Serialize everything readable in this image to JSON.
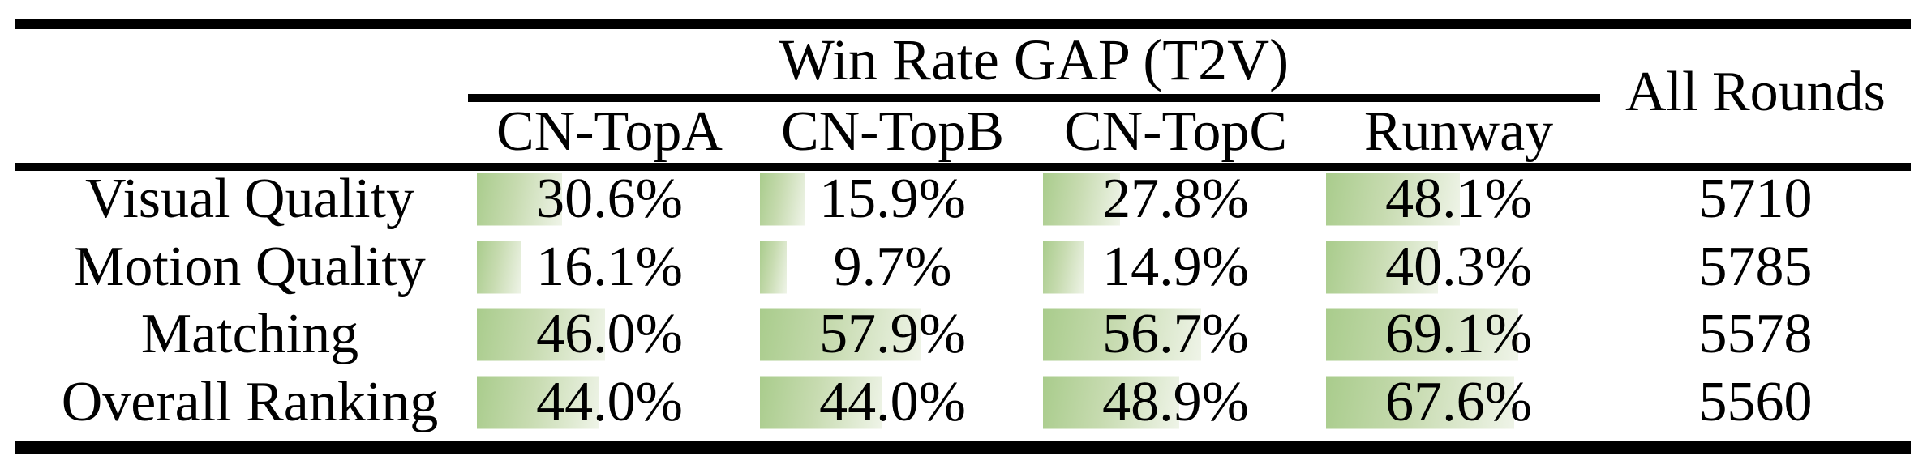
{
  "table": {
    "group_header": "Win Rate GAP (T2V)",
    "all_rounds_header": "All Rounds",
    "columns": [
      "CN-TopA",
      "CN-TopB",
      "CN-TopC",
      "Runway"
    ],
    "rows": [
      {
        "label": "Visual Quality",
        "cells": [
          {
            "text": "30.6%",
            "pct": 30.6
          },
          {
            "text": "15.9%",
            "pct": 15.9
          },
          {
            "text": "27.8%",
            "pct": 27.8
          },
          {
            "text": "48.1%",
            "pct": 48.1
          }
        ],
        "all_rounds": "5710"
      },
      {
        "label": "Motion Quality",
        "cells": [
          {
            "text": "16.1%",
            "pct": 16.1
          },
          {
            "text": "9.7%",
            "pct": 9.7
          },
          {
            "text": "14.9%",
            "pct": 14.9
          },
          {
            "text": "40.3%",
            "pct": 40.3
          }
        ],
        "all_rounds": "5785"
      },
      {
        "label": "Matching",
        "cells": [
          {
            "text": "46.0%",
            "pct": 46.0
          },
          {
            "text": "57.9%",
            "pct": 57.9
          },
          {
            "text": "56.7%",
            "pct": 56.7
          },
          {
            "text": "69.1%",
            "pct": 69.1
          }
        ],
        "all_rounds": "5578"
      },
      {
        "label": "Overall Ranking",
        "cells": [
          {
            "text": "44.0%",
            "pct": 44.0
          },
          {
            "text": "44.0%",
            "pct": 44.0
          },
          {
            "text": "48.9%",
            "pct": 48.9
          },
          {
            "text": "67.6%",
            "pct": 67.6
          }
        ],
        "all_rounds": "5560"
      }
    ],
    "bar_colors": {
      "start": "#a9cc8c",
      "mid": "#c7dbb0",
      "end": "#eff4e8"
    },
    "rule_color": "#000000",
    "text_color": "#000000"
  }
}
